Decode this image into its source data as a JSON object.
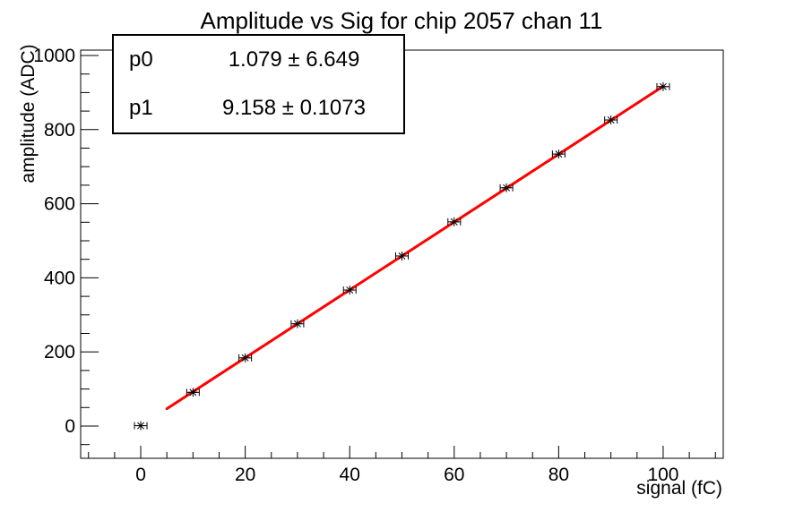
{
  "title": "Amplitude vs Sig for chip 2057 chan 11",
  "stats_box": {
    "rows": [
      {
        "label": "p0",
        "value": "1.079 ± 6.649"
      },
      {
        "label": "p1",
        "value": "9.158 ± 0.1073"
      }
    ]
  },
  "colors": {
    "background": "#ffffff",
    "axis": "#000000",
    "marker": "#000000",
    "fit_line": "#ff0000"
  },
  "chart_data": {
    "type": "scatter",
    "title": "Amplitude vs Sig for chip 2057 chan 11",
    "xlabel": "signal (fC)",
    "ylabel": "amplitude (ADC)",
    "x": [
      0,
      10,
      20,
      30,
      40,
      50,
      60,
      70,
      80,
      90,
      100
    ],
    "y": [
      1,
      91,
      184,
      276,
      367,
      459,
      551,
      643,
      734,
      826,
      916
    ],
    "x_error": 1.2,
    "marker": "asterisk",
    "marker_color": "#000000",
    "fit": {
      "label": "linear",
      "p0": 1.079,
      "p0_err": 6.649,
      "p1": 9.158,
      "p1_err": 0.1073,
      "range": [
        5,
        100
      ],
      "color": "#ff0000",
      "width": 3
    },
    "xlim": [
      -11.5,
      111.5
    ],
    "ylim": [
      -87,
      1014.5
    ],
    "x_major_ticks": [
      0,
      20,
      40,
      60,
      80,
      100
    ],
    "x_minor_step": 5,
    "y_major_ticks": [
      0,
      200,
      400,
      600,
      800,
      1000
    ],
    "y_minor_step": 50,
    "grid": false,
    "legend_position": "none"
  }
}
